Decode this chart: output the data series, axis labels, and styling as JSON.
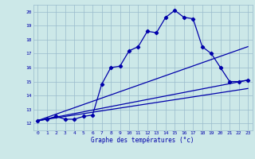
{
  "xlabel": "Graphe des températures (°c)",
  "bg_color": "#cce8e8",
  "grid_color": "#99bbcc",
  "line_color": "#0000aa",
  "xlim": [
    -0.5,
    23.5
  ],
  "ylim": [
    11.5,
    20.5
  ],
  "xticks": [
    0,
    1,
    2,
    3,
    4,
    5,
    6,
    7,
    8,
    9,
    10,
    11,
    12,
    13,
    14,
    15,
    16,
    17,
    18,
    19,
    20,
    21,
    22,
    23
  ],
  "yticks": [
    12,
    13,
    14,
    15,
    16,
    17,
    18,
    19,
    20
  ],
  "series1_x": [
    0,
    1,
    2,
    3,
    4,
    5,
    6,
    7,
    8,
    9,
    10,
    11,
    12,
    13,
    14,
    15,
    16,
    17,
    18,
    19,
    20,
    21,
    22,
    23
  ],
  "series1_y": [
    12.2,
    12.3,
    12.5,
    12.3,
    12.3,
    12.5,
    12.6,
    14.8,
    16.0,
    16.1,
    17.2,
    17.5,
    18.6,
    18.5,
    19.6,
    20.1,
    19.6,
    19.5,
    17.5,
    17.0,
    16.0,
    15.0,
    15.0,
    15.1
  ],
  "series2_x": [
    0,
    23
  ],
  "series2_y": [
    12.2,
    17.5
  ],
  "series3_x": [
    0,
    23
  ],
  "series3_y": [
    12.2,
    15.1
  ],
  "series4_x": [
    0,
    23
  ],
  "series4_y": [
    12.2,
    14.5
  ]
}
